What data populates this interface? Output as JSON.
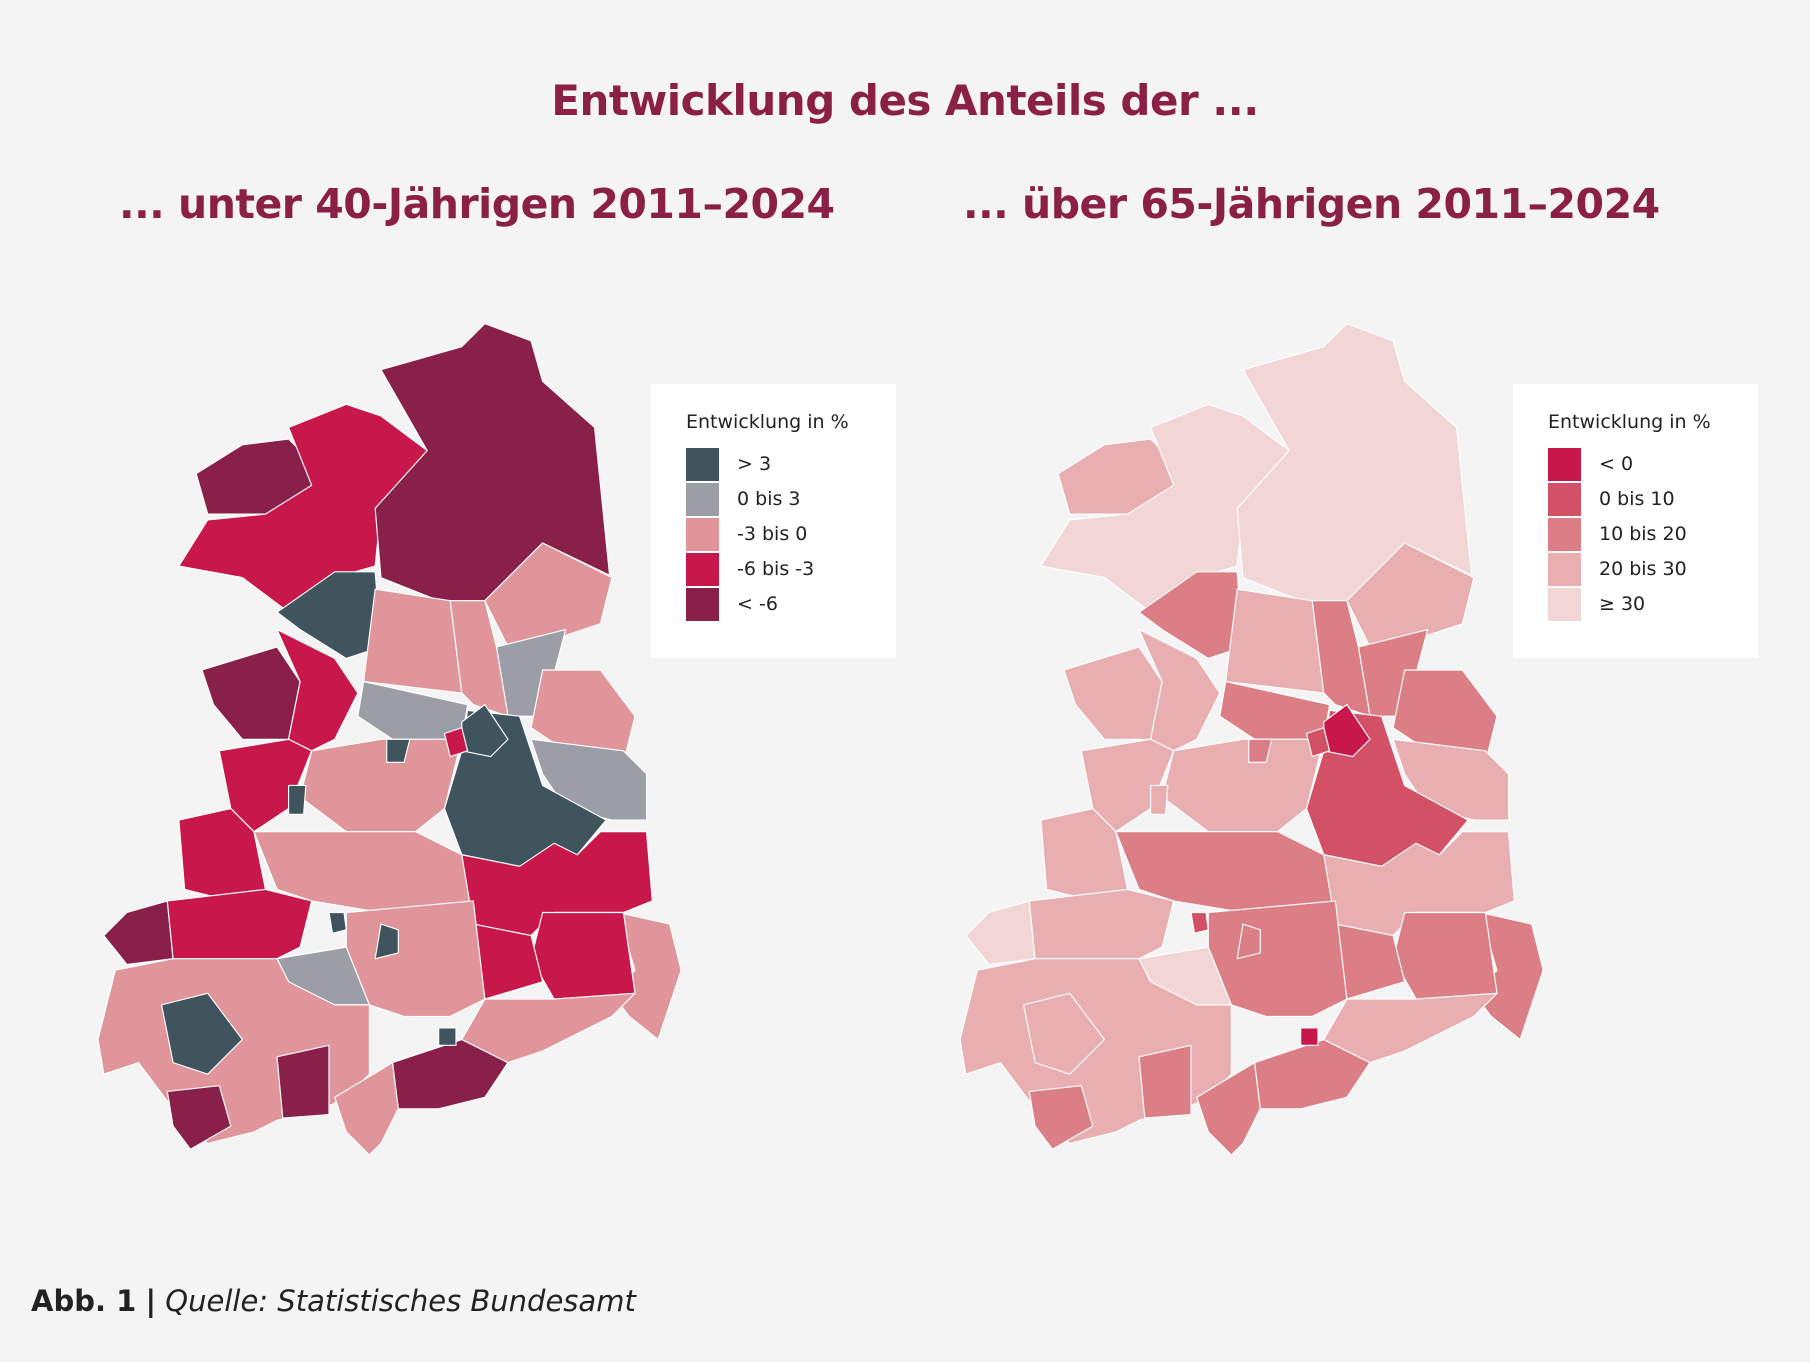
{
  "title": "Entwicklung des Anteils der ...",
  "footer": {
    "label": "Abb. 1",
    "separator": "|",
    "source": "Quelle: Statistisches Bundesamt"
  },
  "maps": [
    {
      "subtitle": "... unter 40-Jährigen 2011–2024",
      "legend": {
        "title": "Entwicklung in %",
        "items": [
          {
            "label": "> 3",
            "color": "#3f545d"
          },
          {
            "label": "0 bis 3",
            "color": "#9b9ea6"
          },
          {
            "label": "-3 bis 0",
            "color": "#e0959a"
          },
          {
            "label": "-6 bis -3",
            "color": "#c8174a"
          },
          {
            "label": "< -6",
            "color": "#88204a"
          }
        ]
      },
      "region_classes": [
        4,
        3,
        4,
        0,
        2,
        2,
        1,
        2,
        2,
        1,
        0,
        1,
        4,
        3,
        3,
        2,
        3,
        2,
        3,
        2,
        3,
        3,
        4,
        3,
        1,
        2,
        2,
        4,
        2,
        4,
        4,
        2,
        0,
        0,
        0,
        0,
        0,
        0,
        3,
        0
      ]
    },
    {
      "subtitle": "... über 65-Jährigen 2011–2024",
      "legend": {
        "title": "Entwicklung in %",
        "items": [
          {
            "label": "< 0",
            "color": "#c8174a"
          },
          {
            "label": "0 bis 10",
            "color": "#d25167"
          },
          {
            "label": "10 bis 20",
            "color": "#dc7e85"
          },
          {
            "label": "20 bis 30",
            "color": "#e8aeb0"
          },
          {
            "label": "≥ 30",
            "color": "#f2d6d6"
          }
        ]
      },
      "region_classes": [
        3,
        4,
        4,
        2,
        3,
        3,
        2,
        2,
        2,
        3,
        1,
        2,
        3,
        3,
        3,
        3,
        3,
        2,
        3,
        2,
        2,
        2,
        4,
        3,
        4,
        2,
        3,
        2,
        3,
        2,
        2,
        2,
        0,
        3,
        2,
        1,
        3,
        2,
        1,
        0
      ]
    }
  ]
}
